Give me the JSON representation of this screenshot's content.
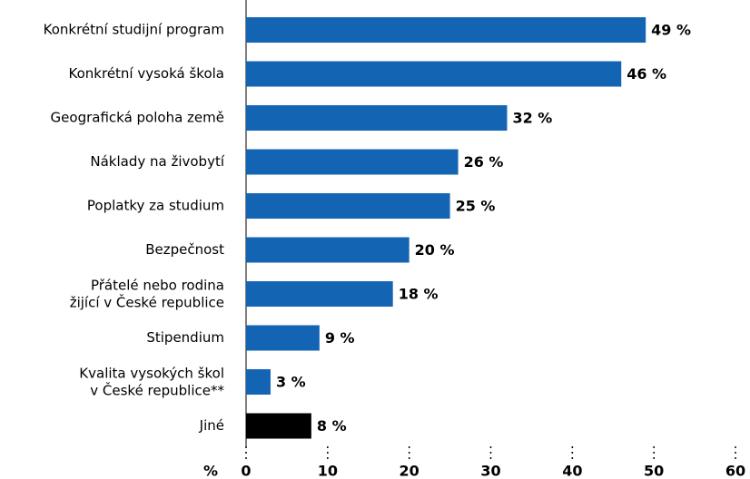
{
  "chart_data": {
    "type": "bar",
    "orientation": "horizontal",
    "categories": [
      "Konkrétní studijní program",
      "Konkrétní vysoká škola",
      "Geografická poloha země",
      "Náklady na živobytí",
      "Poplatky za studium",
      "Bezpečnost",
      "Přátelé nebo rodina\nžijící v České republice",
      "Stipendium",
      "Kvalita vysokých škol\nv České republice**",
      "Jiné"
    ],
    "values": [
      49,
      46,
      32,
      26,
      25,
      20,
      18,
      9,
      3,
      8
    ],
    "value_labels": [
      "49 %",
      "46 %",
      "32 %",
      "26 %",
      "25 %",
      "20 %",
      "18 %",
      "9 %",
      "3 %",
      "8 %"
    ],
    "colors": [
      "#1464b4",
      "#1464b4",
      "#1464b4",
      "#1464b4",
      "#1464b4",
      "#1464b4",
      "#1464b4",
      "#1464b4",
      "#1464b4",
      "#000000"
    ],
    "x_label": "%",
    "xlim": [
      0,
      60
    ],
    "xticks": [
      0,
      10,
      20,
      30,
      40,
      50,
      60
    ]
  }
}
